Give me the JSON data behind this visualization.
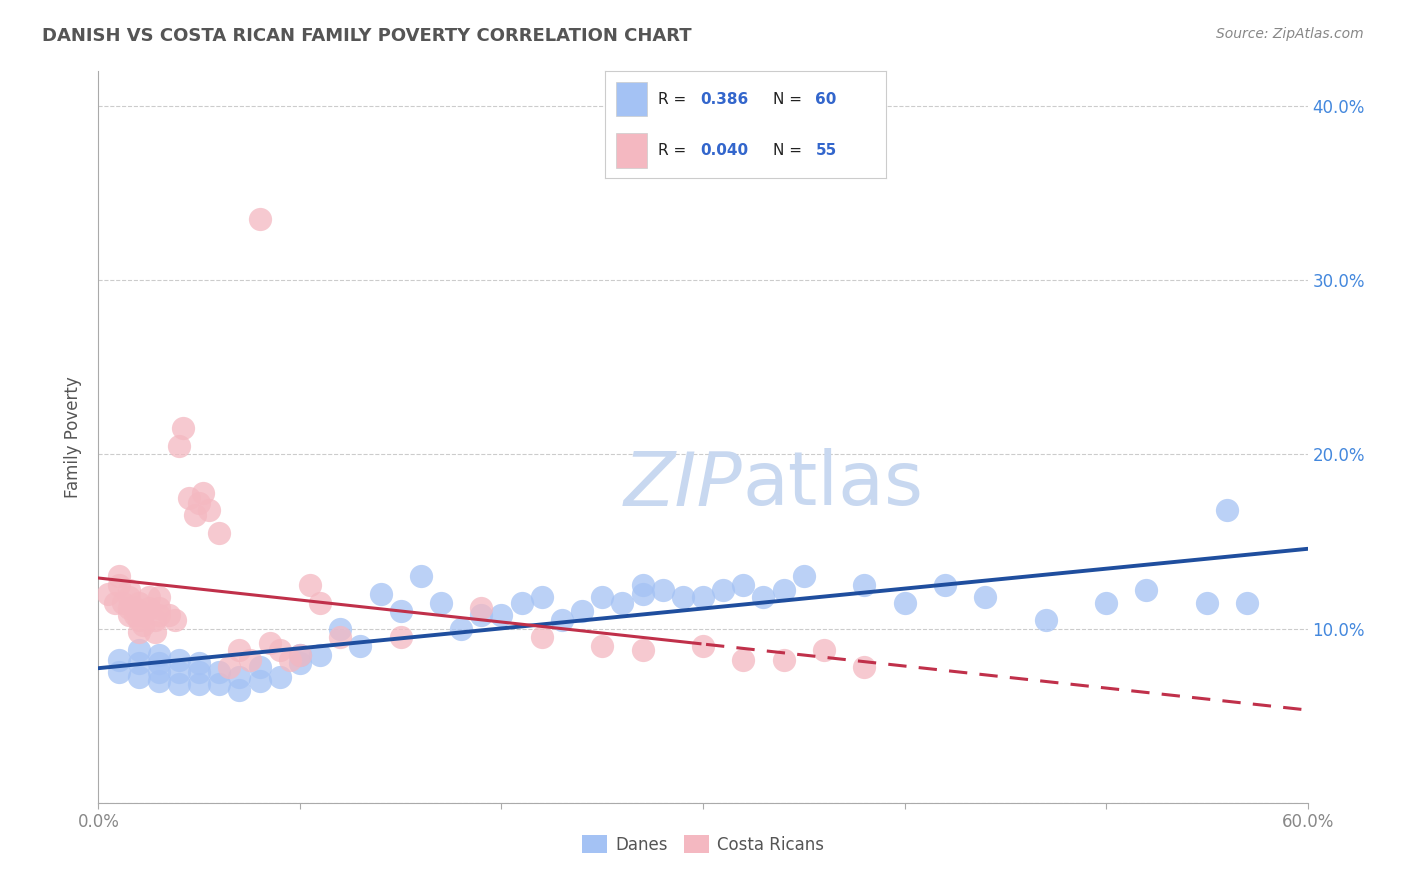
{
  "title": "DANISH VS COSTA RICAN FAMILY POVERTY CORRELATION CHART",
  "source": "Source: ZipAtlas.com",
  "ylabel": "Family Poverty",
  "watermark_left": "ZIP",
  "watermark_right": "atlas",
  "xlim": [
    0.0,
    0.6
  ],
  "ylim": [
    0.0,
    0.42
  ],
  "xticks": [
    0.0,
    0.1,
    0.2,
    0.3,
    0.4,
    0.5,
    0.6
  ],
  "xticklabels": [
    "0.0%",
    "",
    "",
    "",
    "",
    "",
    "60.0%"
  ],
  "yticks_left": [
    0.0,
    0.1,
    0.2,
    0.3,
    0.4
  ],
  "yticklabels_left": [
    "",
    "",
    "",
    "",
    ""
  ],
  "yticks_right": [
    0.1,
    0.2,
    0.3,
    0.4
  ],
  "yticklabels_right": [
    "10.0%",
    "20.0%",
    "30.0%",
    "40.0%"
  ],
  "danes_color": "#a4c2f4",
  "costa_ricans_color": "#f4b8c1",
  "danes_line_color": "#1f4e9e",
  "costa_ricans_line_color": "#c0304a",
  "danes_R": 0.386,
  "danes_N": 60,
  "costa_ricans_R": 0.04,
  "costa_ricans_N": 55,
  "danes_x": [
    0.01,
    0.01,
    0.02,
    0.02,
    0.02,
    0.03,
    0.03,
    0.03,
    0.03,
    0.04,
    0.04,
    0.04,
    0.05,
    0.05,
    0.05,
    0.06,
    0.06,
    0.07,
    0.07,
    0.08,
    0.08,
    0.09,
    0.1,
    0.1,
    0.11,
    0.12,
    0.13,
    0.14,
    0.15,
    0.16,
    0.17,
    0.18,
    0.19,
    0.2,
    0.21,
    0.22,
    0.23,
    0.24,
    0.25,
    0.26,
    0.27,
    0.27,
    0.28,
    0.29,
    0.3,
    0.31,
    0.32,
    0.33,
    0.34,
    0.35,
    0.38,
    0.4,
    0.42,
    0.44,
    0.47,
    0.5,
    0.52,
    0.55,
    0.56,
    0.57
  ],
  "danes_y": [
    0.075,
    0.082,
    0.072,
    0.08,
    0.088,
    0.07,
    0.075,
    0.08,
    0.085,
    0.068,
    0.075,
    0.082,
    0.068,
    0.075,
    0.08,
    0.068,
    0.075,
    0.065,
    0.072,
    0.07,
    0.078,
    0.072,
    0.08,
    0.085,
    0.085,
    0.1,
    0.09,
    0.12,
    0.11,
    0.13,
    0.115,
    0.1,
    0.108,
    0.108,
    0.115,
    0.118,
    0.105,
    0.11,
    0.118,
    0.115,
    0.12,
    0.125,
    0.122,
    0.118,
    0.118,
    0.122,
    0.125,
    0.118,
    0.122,
    0.13,
    0.125,
    0.115,
    0.125,
    0.118,
    0.105,
    0.115,
    0.122,
    0.115,
    0.168,
    0.115
  ],
  "costa_ricans_x": [
    0.005,
    0.008,
    0.01,
    0.01,
    0.012,
    0.015,
    0.015,
    0.015,
    0.015,
    0.018,
    0.018,
    0.02,
    0.02,
    0.02,
    0.02,
    0.022,
    0.022,
    0.025,
    0.025,
    0.028,
    0.028,
    0.03,
    0.03,
    0.03,
    0.035,
    0.038,
    0.04,
    0.042,
    0.045,
    0.048,
    0.05,
    0.052,
    0.055,
    0.06,
    0.065,
    0.07,
    0.075,
    0.08,
    0.085,
    0.09,
    0.095,
    0.1,
    0.105,
    0.11,
    0.12,
    0.15,
    0.19,
    0.22,
    0.25,
    0.27,
    0.3,
    0.32,
    0.34,
    0.36,
    0.38
  ],
  "costa_ricans_y": [
    0.12,
    0.115,
    0.125,
    0.13,
    0.115,
    0.108,
    0.112,
    0.118,
    0.122,
    0.108,
    0.112,
    0.098,
    0.105,
    0.11,
    0.115,
    0.102,
    0.108,
    0.112,
    0.118,
    0.098,
    0.105,
    0.108,
    0.112,
    0.118,
    0.108,
    0.105,
    0.205,
    0.215,
    0.175,
    0.165,
    0.172,
    0.178,
    0.168,
    0.155,
    0.078,
    0.088,
    0.082,
    0.335,
    0.092,
    0.088,
    0.082,
    0.085,
    0.125,
    0.115,
    0.095,
    0.095,
    0.112,
    0.095,
    0.09,
    0.088,
    0.09,
    0.082,
    0.082,
    0.088,
    0.078
  ],
  "background_color": "#ffffff",
  "grid_color": "#cccccc",
  "title_color": "#555555",
  "axis_label_color": "#555555",
  "tick_label_color": "#888888",
  "right_tick_color": "#4488dd",
  "source_color": "#888888",
  "legend_text_color": "#3366cc",
  "watermark_color_zip": "#c8d8f0",
  "watermark_color_atlas": "#c8d8f0"
}
